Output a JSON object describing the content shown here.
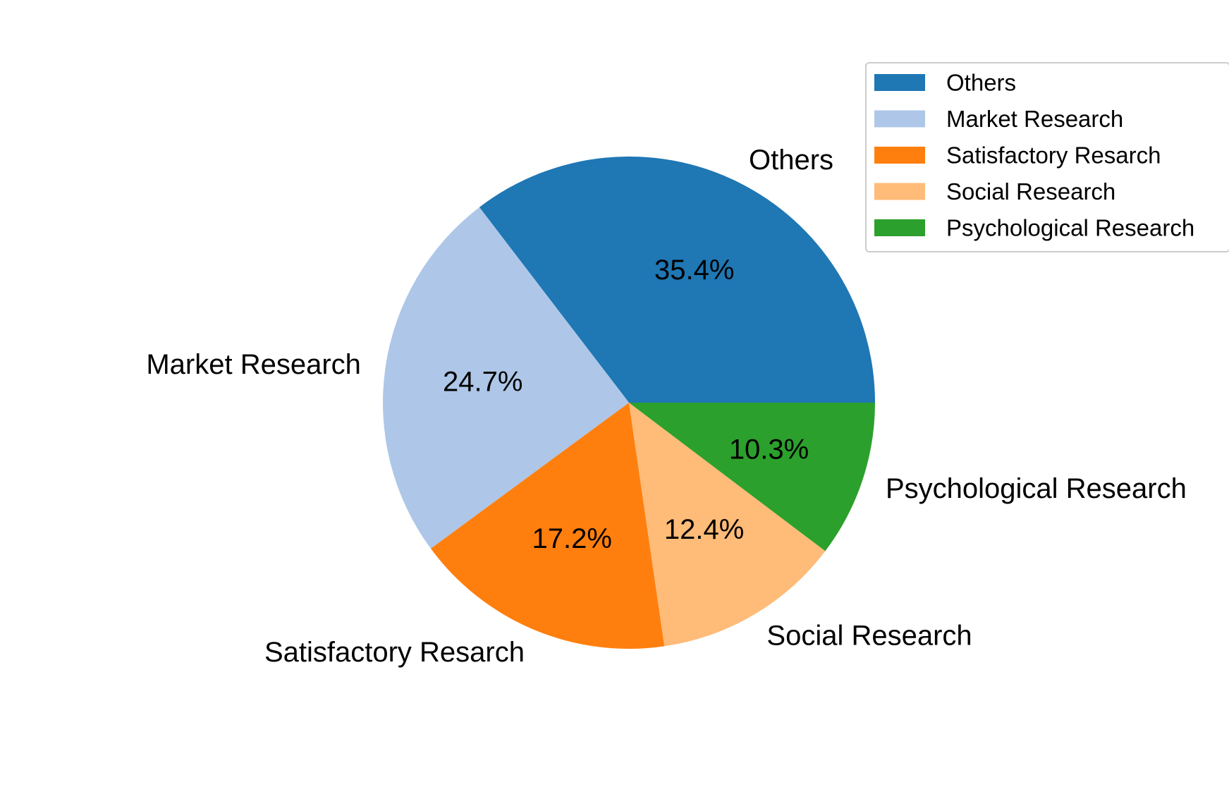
{
  "chart_data": {
    "type": "pie",
    "start_angle": 0,
    "direction": "counterclockwise",
    "legend_position": "top-right",
    "slices": [
      {
        "label": "Others",
        "value": 35.4,
        "pct_label": "35.4%",
        "color": "#1f77b4"
      },
      {
        "label": "Market Research",
        "value": 24.7,
        "pct_label": "24.7%",
        "color": "#aec7e8"
      },
      {
        "label": "Satisfactory Resarch",
        "value": 17.2,
        "pct_label": "17.2%",
        "color": "#ff7f0e"
      },
      {
        "label": "Social Research",
        "value": 12.4,
        "pct_label": "12.4%",
        "color": "#ffbb78"
      },
      {
        "label": "Psychological Research",
        "value": 10.3,
        "pct_label": "10.3%",
        "color": "#2ca02c"
      }
    ]
  }
}
